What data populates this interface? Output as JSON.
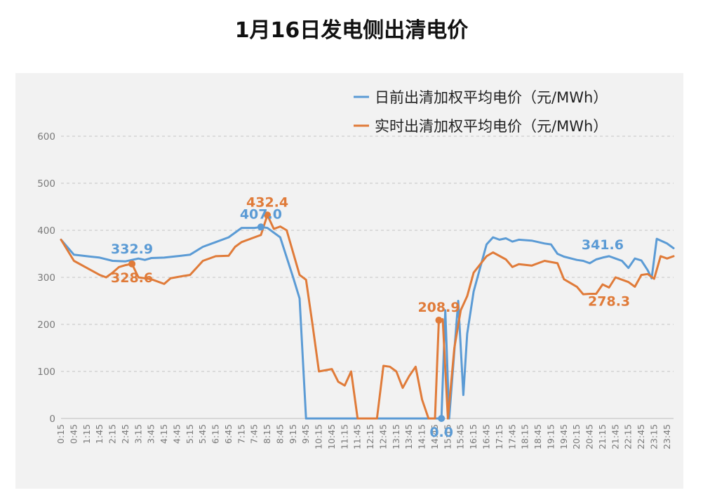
{
  "chart_data": {
    "type": "line",
    "title": "1月16日发电侧出清电价",
    "ylim": [
      0,
      600
    ],
    "y_ticks": [
      0,
      100,
      200,
      300,
      400,
      500,
      600
    ],
    "grid": true,
    "legend_position": "top-right",
    "x_tick_labels": [
      "0:15",
      "0:45",
      "1:15",
      "1:45",
      "2:15",
      "2:45",
      "3:15",
      "3:45",
      "4:15",
      "4:45",
      "5:15",
      "5:45",
      "6:15",
      "6:45",
      "7:15",
      "7:45",
      "8:15",
      "8:45",
      "9:15",
      "9:45",
      "10:15",
      "10:45",
      "11:15",
      "11:45",
      "12:15",
      "12:45",
      "13:15",
      "13:45",
      "14:15",
      "14:45",
      "15:15",
      "15:45",
      "16:15",
      "16:45",
      "17:15",
      "17:45",
      "18:15",
      "18:45",
      "19:15",
      "19:45",
      "20:15",
      "20:45",
      "21:15",
      "21:45",
      "22:15",
      "22:45",
      "23:15",
      "23:45"
    ],
    "series": [
      {
        "name": "日前出清加权平均电价（元/MWh）",
        "color": "#5b9bd5",
        "points": [
          [
            0.25,
            380
          ],
          [
            0.75,
            348
          ],
          [
            1.25,
            345
          ],
          [
            1.75,
            342
          ],
          [
            2.25,
            335
          ],
          [
            2.75,
            334
          ],
          [
            3.25,
            340
          ],
          [
            3.5,
            337
          ],
          [
            3.75,
            341
          ],
          [
            4.25,
            342
          ],
          [
            4.75,
            345
          ],
          [
            5.25,
            348
          ],
          [
            5.75,
            365
          ],
          [
            6.25,
            375
          ],
          [
            6.75,
            385
          ],
          [
            7.25,
            405
          ],
          [
            7.75,
            405
          ],
          [
            8.0,
            407
          ],
          [
            8.25,
            405
          ],
          [
            8.75,
            385
          ],
          [
            9.25,
            300
          ],
          [
            9.5,
            255
          ],
          [
            9.75,
            0
          ],
          [
            14.75,
            0
          ],
          [
            15.0,
            0
          ],
          [
            15.15,
            230
          ],
          [
            15.3,
            0
          ],
          [
            15.65,
            250
          ],
          [
            15.85,
            50
          ],
          [
            16.0,
            180
          ],
          [
            16.25,
            270
          ],
          [
            16.75,
            370
          ],
          [
            17.0,
            385
          ],
          [
            17.25,
            380
          ],
          [
            17.5,
            383
          ],
          [
            17.75,
            376
          ],
          [
            18.0,
            380
          ],
          [
            18.5,
            378
          ],
          [
            19.0,
            372
          ],
          [
            19.25,
            370
          ],
          [
            19.5,
            350
          ],
          [
            19.75,
            344
          ],
          [
            20.25,
            337
          ],
          [
            20.5,
            335
          ],
          [
            20.75,
            330
          ],
          [
            21.0,
            338
          ],
          [
            21.25,
            342
          ],
          [
            21.5,
            345
          ],
          [
            21.75,
            340
          ],
          [
            22.0,
            335
          ],
          [
            22.25,
            320
          ],
          [
            22.5,
            340
          ],
          [
            22.75,
            336
          ],
          [
            23.0,
            315
          ],
          [
            23.15,
            298
          ],
          [
            23.35,
            382
          ],
          [
            23.75,
            372
          ],
          [
            24.0,
            362
          ]
        ]
      },
      {
        "name": "实时出清加权平均电价（元/MWh）",
        "color": "#e07b39",
        "points": [
          [
            0.25,
            380
          ],
          [
            0.75,
            335
          ],
          [
            1.25,
            320
          ],
          [
            1.75,
            305
          ],
          [
            2.0,
            300
          ],
          [
            2.25,
            310
          ],
          [
            2.5,
            322
          ],
          [
            2.75,
            326
          ],
          [
            3.0,
            328.6
          ],
          [
            3.25,
            300
          ],
          [
            3.75,
            296
          ],
          [
            4.25,
            286
          ],
          [
            4.5,
            298
          ],
          [
            5.0,
            303
          ],
          [
            5.25,
            305
          ],
          [
            5.5,
            320
          ],
          [
            5.75,
            335
          ],
          [
            6.25,
            345
          ],
          [
            6.75,
            346
          ],
          [
            7.0,
            365
          ],
          [
            7.25,
            375
          ],
          [
            7.75,
            385
          ],
          [
            8.0,
            390
          ],
          [
            8.25,
            432.4
          ],
          [
            8.5,
            403
          ],
          [
            8.75,
            408
          ],
          [
            9.0,
            400
          ],
          [
            9.5,
            305
          ],
          [
            9.75,
            295
          ],
          [
            10.0,
            200
          ],
          [
            10.25,
            100
          ],
          [
            10.75,
            105
          ],
          [
            11.0,
            78
          ],
          [
            11.25,
            70
          ],
          [
            11.5,
            100
          ],
          [
            11.75,
            0
          ],
          [
            12.5,
            0
          ],
          [
            12.75,
            112
          ],
          [
            13.0,
            110
          ],
          [
            13.25,
            100
          ],
          [
            13.5,
            65
          ],
          [
            13.75,
            90
          ],
          [
            14.0,
            110
          ],
          [
            14.25,
            40
          ],
          [
            14.5,
            0
          ],
          [
            14.75,
            0
          ],
          [
            14.9,
            208.9
          ],
          [
            15.05,
            211
          ],
          [
            15.25,
            0
          ],
          [
            15.5,
            150
          ],
          [
            15.75,
            230
          ],
          [
            16.0,
            260
          ],
          [
            16.25,
            310
          ],
          [
            16.75,
            345
          ],
          [
            17.0,
            353
          ],
          [
            17.5,
            338
          ],
          [
            17.75,
            322
          ],
          [
            18.0,
            328
          ],
          [
            18.5,
            325
          ],
          [
            18.75,
            330
          ],
          [
            19.0,
            335
          ],
          [
            19.5,
            330
          ],
          [
            19.75,
            296
          ],
          [
            20.25,
            280
          ],
          [
            20.5,
            264
          ],
          [
            20.75,
            265
          ],
          [
            21.0,
            265
          ],
          [
            21.25,
            285
          ],
          [
            21.5,
            278.3
          ],
          [
            21.75,
            300
          ],
          [
            22.25,
            290
          ],
          [
            22.5,
            280
          ],
          [
            22.75,
            305
          ],
          [
            23.0,
            307
          ],
          [
            23.25,
            297
          ],
          [
            23.5,
            345
          ],
          [
            23.75,
            340
          ],
          [
            24.0,
            345
          ]
        ]
      }
    ],
    "annotations": [
      {
        "text": "332.9",
        "x": 3.0,
        "y": 332.9,
        "series": 0,
        "label": "above",
        "marker": false
      },
      {
        "text": "407.0",
        "x": 8.0,
        "y": 407,
        "series": 0,
        "label": "above",
        "marker": true
      },
      {
        "text": "341.6",
        "x": 21.25,
        "y": 341.6,
        "series": 0,
        "label": "above",
        "marker": false
      },
      {
        "text": "0.0",
        "x": 15.0,
        "y": 0,
        "series": 0,
        "label": "below",
        "marker": true
      },
      {
        "text": "328.6",
        "x": 3.0,
        "y": 328.6,
        "series": 1,
        "label": "below",
        "marker": true
      },
      {
        "text": "432.4",
        "x": 8.25,
        "y": 432.4,
        "series": 1,
        "label": "above",
        "marker": true
      },
      {
        "text": "208.9",
        "x": 14.9,
        "y": 208.9,
        "series": 1,
        "label": "above",
        "marker": true
      },
      {
        "text": "278.3",
        "x": 21.5,
        "y": 278.3,
        "series": 1,
        "label": "below",
        "marker": false
      }
    ]
  }
}
